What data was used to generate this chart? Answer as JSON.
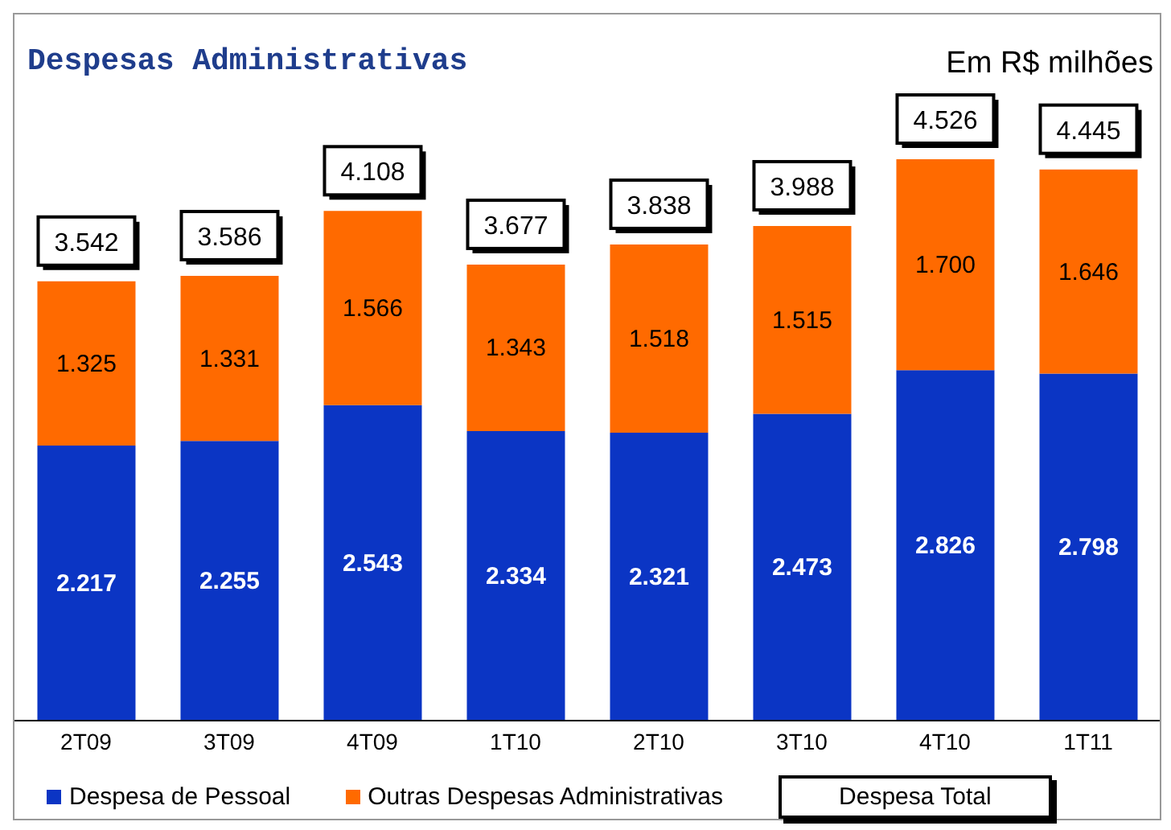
{
  "chart_data": {
    "type": "bar",
    "title": "Despesas Administrativas",
    "subtitle": "Em R$ milhões",
    "stacked": true,
    "categories": [
      "2T09",
      "3T09",
      "4T09",
      "1T10",
      "2T10",
      "3T10",
      "4T10",
      "1T11"
    ],
    "series": [
      {
        "name": "Despesa de Pessoal",
        "color": "#0b35c4",
        "values": [
          2217,
          2255,
          2543,
          2334,
          2321,
          2473,
          2826,
          2798
        ],
        "value_labels": [
          "2.217",
          "2.255",
          "2.543",
          "2.334",
          "2.321",
          "2.473",
          "2.826",
          "2.798"
        ]
      },
      {
        "name": "Outras Despesas Administrativas",
        "color": "#ff6a00",
        "values": [
          1325,
          1331,
          1566,
          1343,
          1518,
          1515,
          1700,
          1646
        ],
        "value_labels": [
          "1.325",
          "1.331",
          "1.566",
          "1.343",
          "1.518",
          "1.515",
          "1.700",
          "1.646"
        ]
      }
    ],
    "totals": [
      "3.542",
      "3.586",
      "4.108",
      "3.677",
      "3.838",
      "3.988",
      "4.526",
      "4.445"
    ],
    "annotations": [
      "Despesa Total"
    ],
    "legend": "bottom",
    "tick_labels": "x"
  }
}
